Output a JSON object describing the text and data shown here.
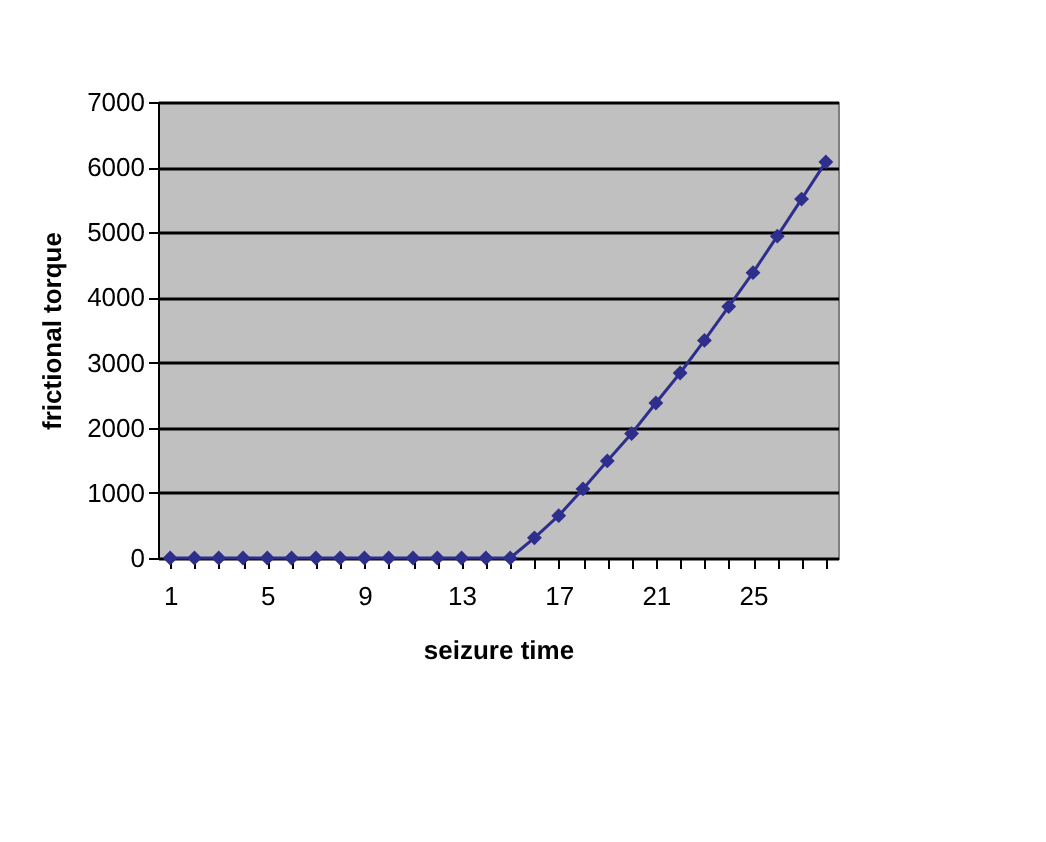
{
  "chart_data": {
    "type": "line",
    "xlabel": "seizure time",
    "ylabel": "frictional torque",
    "categories": [
      "1",
      null,
      null,
      null,
      "5",
      null,
      null,
      null,
      "9",
      null,
      null,
      null,
      "13",
      null,
      null,
      null,
      "17",
      null,
      null,
      null,
      "21",
      null,
      null,
      null,
      "25",
      null,
      null,
      null
    ],
    "series": [
      {
        "color": "#2e2e8c",
        "values": [
          0,
          0,
          0,
          0,
          0,
          0,
          0,
          0,
          0,
          0,
          0,
          0,
          0,
          0,
          0,
          310,
          650,
          1060,
          1490,
          1910,
          2380,
          2840,
          3340,
          3860,
          4380,
          4940,
          5510,
          6080
        ]
      }
    ],
    "ylim": [
      0,
      7000
    ],
    "yticks": [
      0,
      1000,
      2000,
      3000,
      4000,
      5000,
      6000,
      7000
    ],
    "grid": "y",
    "legend": false,
    "marker": "diamond",
    "line_style": "solid"
  }
}
